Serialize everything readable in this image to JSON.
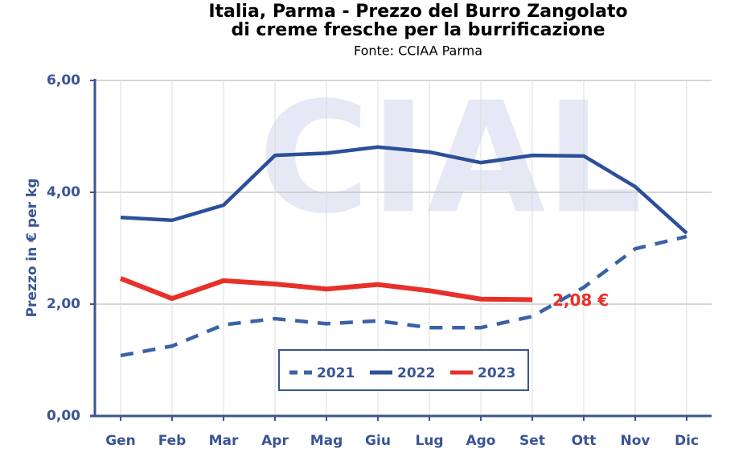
{
  "chart_data": {
    "type": "line",
    "title": [
      "Italia, Parma - Prezzo del Burro Zangolato",
      "di creme fresche per la burrificazione"
    ],
    "subtitle": "Fonte: CCIAA Parma",
    "watermark": "CIAL",
    "y_label": "Prezzo in € per kg",
    "categories": [
      "Gen",
      "Feb",
      "Mar",
      "Apr",
      "Mag",
      "Giu",
      "Lug",
      "Ago",
      "Set",
      "Ott",
      "Nov",
      "Dic"
    ],
    "series": [
      {
        "name": "2021",
        "color": "#3a62a7",
        "dashed": true,
        "values": [
          1.08,
          1.25,
          1.63,
          1.74,
          1.65,
          1.7,
          1.58,
          1.58,
          1.78,
          2.3,
          2.99,
          3.21
        ]
      },
      {
        "name": "2022",
        "color": "#2b4f9a",
        "dashed": false,
        "values": [
          3.55,
          3.5,
          3.77,
          4.66,
          4.7,
          4.81,
          4.72,
          4.53,
          4.66,
          4.65,
          4.1,
          3.27
        ]
      },
      {
        "name": "2023",
        "color": "#e8302a",
        "dashed": false,
        "values": [
          2.46,
          2.1,
          2.42,
          2.36,
          2.27,
          2.35,
          2.24,
          2.09,
          2.08,
          null,
          null,
          null
        ],
        "value_labels": [
          null,
          null,
          null,
          null,
          null,
          null,
          null,
          null,
          "2,08 €",
          null,
          null,
          null
        ]
      }
    ],
    "ylim": [
      0,
      6
    ],
    "yticks": [
      {
        "value": 0,
        "label": "0,00"
      },
      {
        "value": 2,
        "label": "2,00"
      },
      {
        "value": 4,
        "label": "4,00"
      },
      {
        "value": 6,
        "label": "6,00"
      }
    ],
    "grid": true,
    "legend_position": "bottom"
  }
}
